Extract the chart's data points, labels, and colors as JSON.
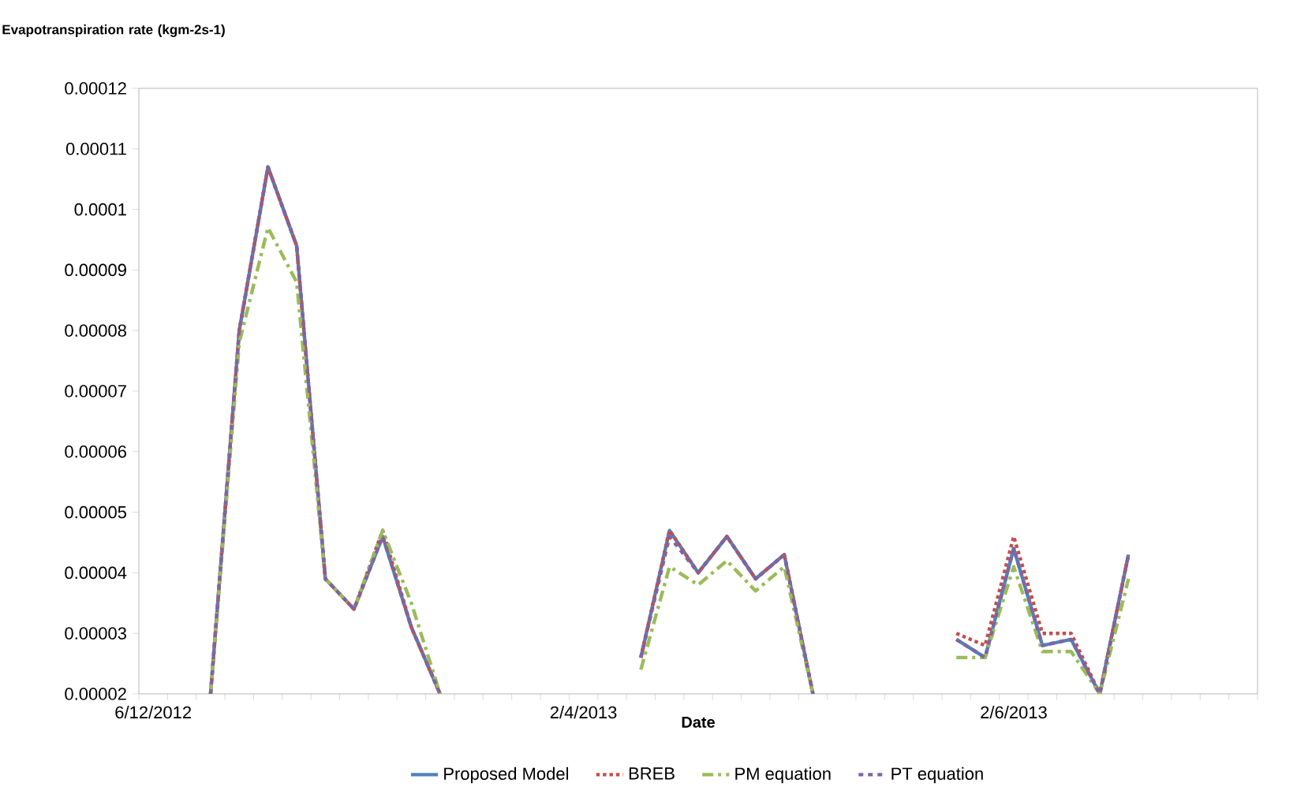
{
  "chart_data": {
    "type": "line",
    "ylabel": "Evapotranspiration rate (kgm-2s-1)",
    "xlabel": "Date",
    "categories": [
      "6/12/2012",
      null,
      null,
      null,
      null,
      null,
      null,
      null,
      null,
      null,
      null,
      null,
      null,
      null,
      null,
      "2/4/2013",
      null,
      null,
      null,
      null,
      null,
      null,
      null,
      null,
      null,
      null,
      null,
      null,
      null,
      null,
      "2/6/2013",
      null,
      null,
      null,
      null,
      null,
      null,
      null,
      null
    ],
    "series": [
      {
        "name": "Proposed Model",
        "color": "#4f81bd",
        "line_style": "solid",
        "values": [
          null,
          null,
          2e-05,
          8e-05,
          0.000107,
          9.4e-05,
          3.9e-05,
          3.4e-05,
          4.6e-05,
          3.1e-05,
          2e-05,
          null,
          null,
          null,
          null,
          null,
          null,
          2.6e-05,
          4.7e-05,
          4e-05,
          4.6e-05,
          3.9e-05,
          4.3e-05,
          2e-05,
          null,
          null,
          null,
          null,
          2.9e-05,
          2.6e-05,
          4.4e-05,
          2.8e-05,
          2.9e-05,
          2e-05,
          4.3e-05,
          null,
          null,
          null,
          null
        ]
      },
      {
        "name": "BREB",
        "color": "#c0504d",
        "line_style": "dotted",
        "values": [
          null,
          null,
          2e-05,
          8e-05,
          0.000107,
          9.4e-05,
          3.9e-05,
          3.4e-05,
          4.7e-05,
          3.1e-05,
          2e-05,
          null,
          null,
          null,
          null,
          null,
          null,
          2.6e-05,
          4.7e-05,
          4e-05,
          4.6e-05,
          3.9e-05,
          4.3e-05,
          2e-05,
          null,
          null,
          null,
          null,
          3e-05,
          2.8e-05,
          4.6e-05,
          3e-05,
          3e-05,
          2e-05,
          4.3e-05,
          null,
          null,
          null,
          null
        ]
      },
      {
        "name": "PM equation",
        "color": "#9bbb59",
        "line_style": "dashdot",
        "values": [
          null,
          null,
          2e-05,
          7.8e-05,
          9.7e-05,
          8.8e-05,
          3.9e-05,
          3.4e-05,
          4.7e-05,
          3.5e-05,
          2e-05,
          null,
          null,
          null,
          null,
          null,
          null,
          2.4e-05,
          4.1e-05,
          3.8e-05,
          4.2e-05,
          3.7e-05,
          4.1e-05,
          2e-05,
          null,
          null,
          null,
          null,
          2.6e-05,
          2.6e-05,
          4.1e-05,
          2.7e-05,
          2.7e-05,
          2e-05,
          3.9e-05,
          null,
          null,
          null,
          null
        ]
      },
      {
        "name": "PT equation",
        "color": "#8064a2",
        "line_style": "dashed",
        "values": [
          null,
          null,
          2e-05,
          8e-05,
          0.000107,
          9.4e-05,
          3.9e-05,
          3.4e-05,
          4.6e-05,
          3.1e-05,
          2e-05,
          null,
          null,
          null,
          null,
          null,
          null,
          2.6e-05,
          4.6e-05,
          4e-05,
          4.6e-05,
          3.9e-05,
          4.3e-05,
          2e-05,
          null,
          null,
          null,
          null,
          2.9e-05,
          2.6e-05,
          4.4e-05,
          2.8e-05,
          2.9e-05,
          2e-05,
          4.3e-05,
          null,
          null,
          null,
          null
        ]
      }
    ],
    "ylim": [
      2e-05,
      0.00012
    ],
    "yticks": [
      {
        "value": 2e-05,
        "label": "0.00002"
      },
      {
        "value": 3e-05,
        "label": "0.00003"
      },
      {
        "value": 4e-05,
        "label": "0.00004"
      },
      {
        "value": 5e-05,
        "label": "0.00005"
      },
      {
        "value": 6e-05,
        "label": "0.00006"
      },
      {
        "value": 7e-05,
        "label": "0.00007"
      },
      {
        "value": 8e-05,
        "label": "0.00008"
      },
      {
        "value": 9e-05,
        "label": "0.00009"
      },
      {
        "value": 0.0001,
        "label": "0.0001"
      },
      {
        "value": 0.00011,
        "label": "0.00011"
      },
      {
        "value": 0.00012,
        "label": "0.00012"
      }
    ],
    "grid": false,
    "legend": "bottom",
    "marker": "none"
  }
}
